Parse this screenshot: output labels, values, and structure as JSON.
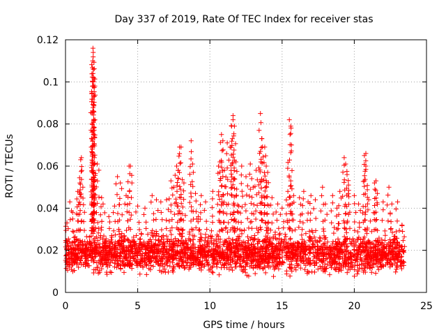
{
  "chart_data": {
    "type": "scatter",
    "title": "Day 337 of 2019, Rate Of TEC Index for receiver stas",
    "xlabel": "GPS time / hours",
    "ylabel": "ROTI / TECUs",
    "xlim": [
      0,
      25
    ],
    "ylim": [
      0,
      0.12
    ],
    "x_ticks": [
      0,
      5,
      10,
      15,
      20,
      25
    ],
    "x_tick_labels": [
      "0",
      "5",
      "10",
      "15",
      "20",
      "25"
    ],
    "y_ticks": [
      0,
      0.02,
      0.04,
      0.06,
      0.08,
      0.1,
      0.12
    ],
    "y_tick_labels": [
      "0",
      "0.02",
      "0.04",
      "0.06",
      "0.08",
      "0.1",
      "0.12"
    ],
    "grid": true,
    "marker": "plus",
    "color": "#ff0000",
    "x_range_of_data": [
      0,
      23.5
    ],
    "baseline_band": [
      0.006,
      0.03
    ],
    "series": [
      {
        "name": "ROTI",
        "points": [
          [
            1.0,
            0.052
          ],
          [
            1.1,
            0.064
          ],
          [
            1.05,
            0.063
          ],
          [
            0.85,
            0.048
          ],
          [
            1.2,
            0.05
          ],
          [
            1.9,
            0.116
          ],
          [
            1.92,
            0.114
          ],
          [
            1.88,
            0.11
          ],
          [
            1.93,
            0.106
          ],
          [
            1.9,
            0.104
          ],
          [
            1.95,
            0.102
          ],
          [
            1.87,
            0.1
          ],
          [
            1.9,
            0.077
          ],
          [
            1.93,
            0.075
          ],
          [
            2.0,
            0.064
          ],
          [
            1.85,
            0.057
          ],
          [
            1.9,
            0.052
          ],
          [
            2.2,
            0.061
          ],
          [
            2.5,
            0.045
          ],
          [
            2.6,
            0.042
          ],
          [
            3.6,
            0.055
          ],
          [
            3.8,
            0.052
          ],
          [
            4.2,
            0.046
          ],
          [
            4.4,
            0.06
          ],
          [
            4.5,
            0.06
          ],
          [
            5.0,
            0.041
          ],
          [
            5.5,
            0.04
          ],
          [
            6.0,
            0.046
          ],
          [
            6.3,
            0.044
          ],
          [
            7.0,
            0.044
          ],
          [
            7.3,
            0.053
          ],
          [
            7.5,
            0.05
          ],
          [
            7.7,
            0.06
          ],
          [
            7.8,
            0.058
          ],
          [
            7.9,
            0.069
          ],
          [
            8.0,
            0.069
          ],
          [
            8.2,
            0.052
          ],
          [
            8.7,
            0.072
          ],
          [
            8.8,
            0.061
          ],
          [
            9.0,
            0.047
          ],
          [
            9.4,
            0.046
          ],
          [
            9.7,
            0.043
          ],
          [
            10.2,
            0.048
          ],
          [
            10.6,
            0.06
          ],
          [
            10.7,
            0.062
          ],
          [
            10.8,
            0.075
          ],
          [
            10.9,
            0.072
          ],
          [
            11.0,
            0.058
          ],
          [
            11.2,
            0.071
          ],
          [
            11.4,
            0.069
          ],
          [
            11.6,
            0.084
          ],
          [
            11.6,
            0.082
          ],
          [
            11.7,
            0.079
          ],
          [
            11.8,
            0.062
          ],
          [
            12.2,
            0.06
          ],
          [
            12.5,
            0.055
          ],
          [
            12.8,
            0.061
          ],
          [
            13.0,
            0.05
          ],
          [
            13.2,
            0.058
          ],
          [
            13.5,
            0.085
          ],
          [
            13.6,
            0.073
          ],
          [
            13.5,
            0.067
          ],
          [
            13.8,
            0.069
          ],
          [
            13.9,
            0.06
          ],
          [
            14.0,
            0.057
          ],
          [
            13.9,
            0.053
          ],
          [
            14.3,
            0.045
          ],
          [
            15.0,
            0.04
          ],
          [
            15.4,
            0.048
          ],
          [
            15.5,
            0.082
          ],
          [
            15.6,
            0.079
          ],
          [
            15.6,
            0.053
          ],
          [
            15.8,
            0.046
          ],
          [
            16.2,
            0.045
          ],
          [
            16.5,
            0.048
          ],
          [
            17.0,
            0.046
          ],
          [
            17.3,
            0.044
          ],
          [
            17.8,
            0.05
          ],
          [
            18.0,
            0.042
          ],
          [
            18.5,
            0.046
          ],
          [
            19.0,
            0.048
          ],
          [
            19.3,
            0.064
          ],
          [
            19.4,
            0.061
          ],
          [
            19.5,
            0.056
          ],
          [
            19.6,
            0.051
          ],
          [
            20.0,
            0.046
          ],
          [
            20.3,
            0.042
          ],
          [
            20.7,
            0.065
          ],
          [
            20.8,
            0.066
          ],
          [
            20.8,
            0.06
          ],
          [
            21.0,
            0.044
          ],
          [
            21.4,
            0.052
          ],
          [
            21.5,
            0.053
          ],
          [
            21.6,
            0.047
          ],
          [
            22.0,
            0.043
          ],
          [
            22.4,
            0.05
          ],
          [
            22.6,
            0.042
          ],
          [
            23.0,
            0.043
          ],
          [
            23.3,
            0.032
          ],
          [
            0.3,
            0.043
          ],
          [
            0.1,
            0.033
          ],
          [
            0.5,
            0.038
          ],
          [
            3.0,
            0.036
          ],
          [
            3.4,
            0.041
          ],
          [
            6.6,
            0.043
          ],
          [
            9.2,
            0.036
          ],
          [
            12.0,
            0.041
          ],
          [
            14.7,
            0.042
          ],
          [
            16.8,
            0.043
          ],
          [
            18.8,
            0.04
          ]
        ]
      }
    ]
  }
}
